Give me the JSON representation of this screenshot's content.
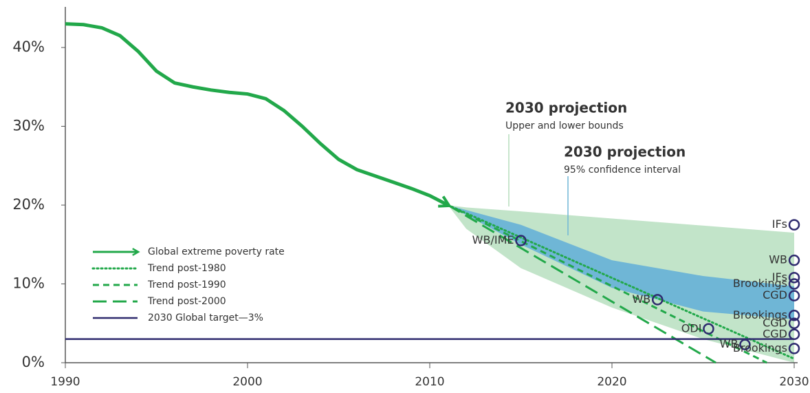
{
  "chart_data": {
    "type": "line",
    "xlim": [
      1990,
      2030
    ],
    "ylim": [
      0,
      45
    ],
    "xticks": [
      1990,
      2000,
      2010,
      2020,
      2030
    ],
    "yticks": [
      {
        "value": 0,
        "label": "0%"
      },
      {
        "value": 10,
        "label": "10%"
      },
      {
        "value": 20,
        "label": "20%"
      },
      {
        "value": 30,
        "label": "30%"
      },
      {
        "value": 40,
        "label": "40%"
      }
    ],
    "legend": "lower left",
    "series": [
      {
        "name": "Global extreme poverty rate",
        "color": "#22a84a",
        "style": "arrow",
        "x": [
          1990,
          1991,
          1992,
          1993,
          1994,
          1995,
          1996,
          1997,
          1998,
          1999,
          2000,
          2001,
          2002,
          2003,
          2004,
          2005,
          2006,
          2007,
          2008,
          2009,
          2010,
          2011
        ],
        "values": [
          43,
          42.9,
          42.5,
          41.5,
          39.5,
          37,
          35.5,
          35,
          34.6,
          34.3,
          34.1,
          33.5,
          32,
          30,
          27.8,
          25.8,
          24.5,
          23.7,
          22.9,
          22.1,
          21.2,
          20
        ]
      },
      {
        "name": "Trend post-1980",
        "color": "#22a84a",
        "style": "dotted",
        "x": [
          2011,
          2030
        ],
        "values": [
          20,
          0.5
        ]
      },
      {
        "name": "Trend post-1990",
        "color": "#22a84a",
        "style": "dashed",
        "x": [
          2011,
          2028.5
        ],
        "values": [
          20,
          0
        ]
      },
      {
        "name": "Trend post-2000",
        "color": "#22a84a",
        "style": "longdash",
        "x": [
          2011,
          2025.7
        ],
        "values": [
          20,
          0
        ]
      },
      {
        "name": "2030 Global target—3%",
        "color": "#2e2a6e",
        "style": "solid",
        "x": [
          1990,
          2030
        ],
        "values": [
          3,
          3
        ]
      }
    ],
    "bands": [
      {
        "title": "2030 projection",
        "subtitle": "Upper and lower bounds",
        "color": "#c2e4c9",
        "line_color": "#b5dcbc",
        "x": [
          2011,
          2012,
          2015,
          2020,
          2025,
          2030
        ],
        "upper": [
          20,
          19.7,
          19.2,
          18.3,
          17.4,
          16.5
        ],
        "lower": [
          20,
          17,
          12,
          7,
          3,
          0
        ]
      },
      {
        "title": "2030 projection",
        "subtitle": "95% confidence interval",
        "color": "#6fb6d6",
        "line_color": "#6fb6d6",
        "x": [
          2011,
          2015,
          2020,
          2025,
          2030
        ],
        "upper": [
          20,
          17.5,
          13,
          11,
          9.7
        ],
        "lower": [
          20,
          15,
          9.5,
          6.5,
          5.5
        ]
      }
    ],
    "points_color": "#2e2a6e",
    "points": [
      {
        "label": "WB/IME",
        "x": 2015,
        "y": 15.5
      },
      {
        "label": "WB",
        "x": 2022.5,
        "y": 8
      },
      {
        "label": "ODI",
        "x": 2025.3,
        "y": 4.3
      },
      {
        "label": "WB",
        "x": 2027.3,
        "y": 2.3
      },
      {
        "label": "IFs",
        "x": 2030,
        "y": 17.5
      },
      {
        "label": "WB",
        "x": 2030,
        "y": 13
      },
      {
        "label": "IFs",
        "x": 2030,
        "y": 10.8
      },
      {
        "label": "Brookings",
        "x": 2030,
        "y": 10
      },
      {
        "label": "CGD",
        "x": 2030,
        "y": 8.5
      },
      {
        "label": "Brookings",
        "x": 2030,
        "y": 6
      },
      {
        "label": "CGD",
        "x": 2030,
        "y": 5
      },
      {
        "label": "CGD",
        "x": 2030,
        "y": 3.6
      },
      {
        "label": "Brookings",
        "x": 2030,
        "y": 1.8
      }
    ]
  }
}
